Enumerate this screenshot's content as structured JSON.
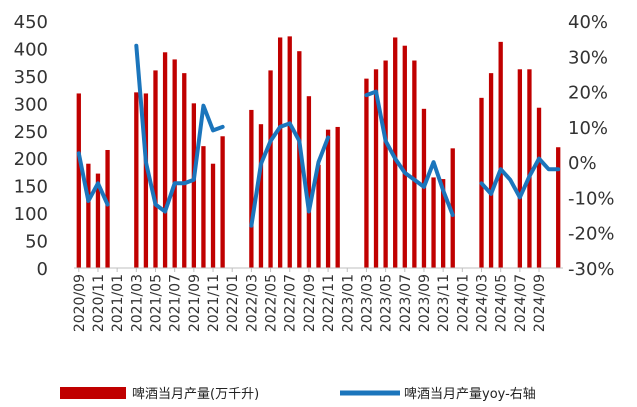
{
  "chart_data": {
    "type": "bar",
    "combo": "bar+line (dual axis)",
    "grid": false,
    "legend_position": "bottom",
    "x_ticks": [
      "2020/09",
      "2020/11",
      "2021/01",
      "2021/03",
      "2021/05",
      "2021/07",
      "2021/09",
      "2021/11",
      "2022/01",
      "2022/03",
      "2022/05",
      "2022/07",
      "2022/09",
      "2022/11",
      "2023/01",
      "2023/03",
      "2023/05",
      "2023/07",
      "2023/09",
      "2023/11",
      "2024/01",
      "2024/03",
      "2024/05",
      "2024/07",
      "2024/09"
    ],
    "categories": [
      "2020/09",
      "2020/10",
      "2020/11",
      "2020/12",
      "2021/01",
      "2021/02",
      "2021/03",
      "2021/04",
      "2021/05",
      "2021/06",
      "2021/07",
      "2021/08",
      "2021/09",
      "2021/10",
      "2021/11",
      "2021/12",
      "2022/01",
      "2022/02",
      "2022/03",
      "2022/04",
      "2022/05",
      "2022/06",
      "2022/07",
      "2022/08",
      "2022/09",
      "2022/10",
      "2022/11",
      "2022/12",
      "2023/01",
      "2023/02",
      "2023/03",
      "2023/04",
      "2023/05",
      "2023/06",
      "2023/07",
      "2023/08",
      "2023/09",
      "2023/10",
      "2023/11",
      "2023/12",
      "2024/01",
      "2024/02",
      "2024/03",
      "2024/04",
      "2024/05",
      "2024/06",
      "2024/07",
      "2024/08",
      "2024/09",
      "2024/10",
      "2024/11"
    ],
    "y_left": {
      "ylim": [
        0,
        450
      ],
      "ticks": [
        "0",
        "50",
        "100",
        "150",
        "200",
        "250",
        "300",
        "350",
        "400",
        "450"
      ]
    },
    "y_right": {
      "ylim": [
        -30,
        40
      ],
      "ticks": [
        "-30%",
        "-20%",
        "-10%",
        "0%",
        "10%",
        "20%",
        "30%",
        "40%"
      ]
    },
    "series": [
      {
        "name": "啤酒当月产量(万千升)",
        "type": "bar",
        "axis": "left",
        "color": "#C00000",
        "values": [
          318,
          190,
          172,
          215,
          null,
          null,
          320,
          318,
          360,
          393,
          380,
          355,
          300,
          222,
          190,
          240,
          null,
          null,
          288,
          262,
          360,
          420,
          422,
          395,
          313,
          188,
          252,
          257,
          null,
          null,
          345,
          362,
          378,
          420,
          405,
          378,
          290,
          165,
          162,
          218,
          null,
          null,
          310,
          355,
          412,
          null,
          362,
          362,
          292,
          null,
          220
        ]
      },
      {
        "name": "啤酒当月产量yoy-右轴",
        "type": "line",
        "axis": "right",
        "color": "#1B75BC",
        "values": [
          2.5,
          -11,
          -6,
          -12,
          null,
          null,
          33,
          0,
          -12,
          -14,
          -6,
          -6,
          -5,
          16,
          9,
          10,
          null,
          null,
          -18,
          -0.5,
          6,
          10,
          11,
          6,
          -14,
          0,
          7,
          null,
          null,
          null,
          19,
          20,
          6,
          1,
          -3,
          -5,
          -7,
          0,
          -8,
          -15,
          null,
          null,
          -6,
          -9,
          -2,
          -5,
          -10,
          -4,
          1,
          -2,
          -2
        ]
      }
    ]
  }
}
